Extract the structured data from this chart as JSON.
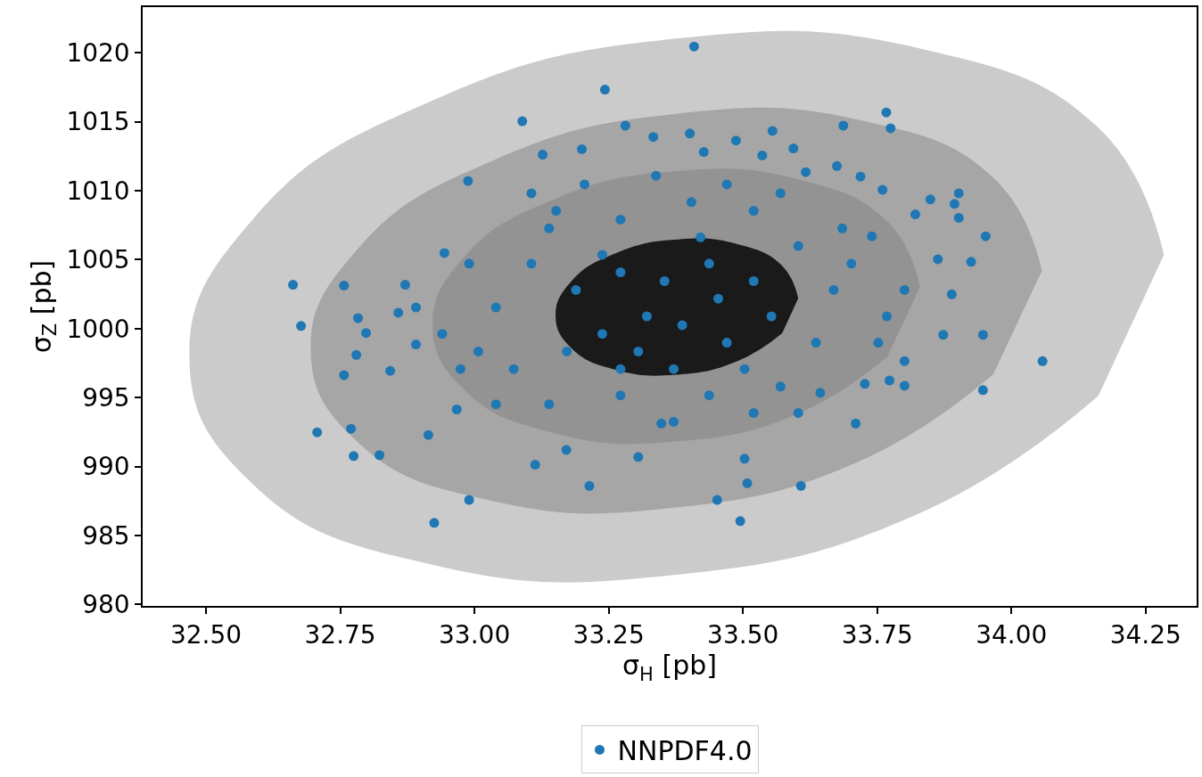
{
  "chart_data": {
    "type": "scatter",
    "xlabel": "σ$_{H}$ [pb]",
    "ylabel": "σ$_{Z}$ [pb]",
    "xlim": [
      32.382,
      34.345
    ],
    "ylim": [
      979.9,
      1023.3
    ],
    "xticks": [
      {
        "value": 32.5,
        "label": "32.50"
      },
      {
        "value": 32.75,
        "label": "32.75"
      },
      {
        "value": 33.0,
        "label": "33.00"
      },
      {
        "value": 33.25,
        "label": "33.25"
      },
      {
        "value": 33.5,
        "label": "33.50"
      },
      {
        "value": 33.75,
        "label": "33.75"
      },
      {
        "value": 34.0,
        "label": "34.00"
      },
      {
        "value": 34.25,
        "label": "34.25"
      }
    ],
    "yticks": [
      980,
      985,
      990,
      995,
      1000,
      1005,
      1010,
      1015,
      1020
    ],
    "grid": false,
    "legend": "bottom",
    "series": [
      {
        "type": "area",
        "color": "#cbcbcb",
        "x": [
          34.284,
          34.162,
          33.83,
          33.376,
          32.922,
          32.59,
          32.469,
          32.59,
          32.922,
          33.376,
          33.83,
          34.162
        ],
        "values": [
          1005.35,
          1014.56,
          1020.3,
          1021.02,
          1016.54,
          1008.05,
          997.83,
          988.62,
          982.88,
          982.16,
          986.64,
          995.13
        ]
      },
      {
        "type": "area",
        "color": "#a6a6a6",
        "x": [
          34.057,
          33.966,
          33.717,
          33.376,
          33.036,
          32.786,
          32.695,
          32.786,
          33.036,
          33.376,
          33.717,
          33.966
        ],
        "values": [
          1004.2,
          1010.95,
          1015.11,
          1015.57,
          1012.21,
          1005.92,
          998.4,
          991.65,
          987.49,
          987.03,
          990.39,
          996.68
        ]
      },
      {
        "type": "area",
        "color": "#939393",
        "x": [
          33.83,
          33.769,
          33.603,
          33.376,
          33.149,
          32.983,
          32.922,
          32.983,
          33.149,
          33.376,
          33.603,
          33.769
        ],
        "values": [
          1003.05,
          1007.76,
          1010.82,
          1011.42,
          1009.39,
          1005.28,
          1000.19,
          995.48,
          992.42,
          991.82,
          993.85,
          997.96
        ]
      },
      {
        "type": "area",
        "color": "#1a1a1a",
        "x": [
          33.603,
          33.573,
          33.49,
          33.377,
          33.264,
          33.181,
          33.151,
          33.181,
          33.264,
          33.377,
          33.49,
          33.573
        ],
        "values": [
          1002.2,
          1004.56,
          1006.12,
          1006.46,
          1005.48,
          1003.46,
          1000.92,
          998.56,
          997.0,
          996.66,
          997.64,
          999.66
        ]
      },
      {
        "name": "NNPDF4.0",
        "marker": "circle",
        "color": "#1f77b4",
        "x": [
          32.662,
          32.677,
          32.707,
          32.757,
          32.757,
          32.77,
          32.775,
          32.78,
          32.783,
          32.798,
          32.823,
          32.843,
          32.871,
          32.858,
          32.891,
          32.891,
          32.914,
          32.925,
          32.944,
          32.967,
          32.99,
          32.988,
          33.089,
          33.113,
          33.127,
          33.152,
          33.171,
          33.214,
          33.2,
          33.243,
          33.281,
          33.305,
          33.333,
          33.348,
          33.401,
          33.409,
          33.427,
          33.452,
          33.487,
          33.495,
          33.503,
          33.508,
          33.536,
          33.555,
          33.594,
          33.608,
          33.617,
          33.644,
          33.675,
          33.687,
          33.719,
          33.71,
          33.727,
          33.767,
          33.775,
          33.76,
          33.74,
          33.773,
          33.801,
          33.801,
          33.821,
          33.849,
          33.863,
          33.873,
          33.894,
          33.889,
          33.902,
          33.925,
          33.947,
          33.947,
          33.952,
          34.058,
          33.902,
          33.189,
          33.272,
          33.354,
          33.437,
          33.52,
          33.238,
          33.305,
          33.387,
          33.47,
          33.553,
          33.172,
          33.371,
          33.106,
          33.04,
          33.073,
          33.139,
          33.272,
          33.404,
          33.52,
          33.603,
          33.669,
          33.636,
          33.57,
          33.437,
          33.272,
          33.139,
          33.007,
          32.99,
          33.702,
          33.768,
          33.752,
          33.205,
          33.338,
          33.47,
          33.371,
          33.52,
          33.603,
          33.04,
          32.94,
          32.974,
          33.106,
          33.57,
          33.801,
          33.685,
          33.238,
          33.454,
          33.321,
          33.503,
          33.272,
          33.421
        ],
        "values": [
          1003.18,
          1000.19,
          992.48,
          1003.12,
          996.62,
          992.74,
          990.76,
          998.09,
          1000.76,
          999.68,
          990.83,
          996.94,
          1003.18,
          1001.15,
          1001.53,
          998.85,
          992.29,
          985.92,
          1005.48,
          994.14,
          987.58,
          1010.7,
          1015.03,
          990.13,
          1012.61,
          1008.54,
          991.21,
          988.6,
          1013.0,
          1017.32,
          1014.71,
          990.7,
          1013.89,
          993.12,
          1014.14,
          1020.45,
          1012.8,
          987.58,
          1013.63,
          986.05,
          990.57,
          988.79,
          1012.55,
          1014.33,
          1013.06,
          988.6,
          1011.34,
          995.35,
          1011.78,
          1014.71,
          1011.02,
          993.12,
          995.99,
          1015.67,
          1014.52,
          1010.06,
          1006.69,
          996.24,
          997.64,
          995.86,
          1008.28,
          1009.36,
          1005.03,
          999.55,
          1009.04,
          1002.48,
          1008.03,
          1004.84,
          995.54,
          999.55,
          1006.69,
          997.64,
          1009.81,
          1002.8,
          1004.08,
          1003.44,
          1004.71,
          1003.44,
          999.62,
          998.34,
          1000.25,
          998.98,
          1000.89,
          998.34,
          997.07,
          1004.71,
          1001.53,
          997.07,
          1007.26,
          1007.9,
          1009.17,
          1008.54,
          1005.99,
          1002.8,
          998.98,
          995.8,
          995.16,
          995.16,
          994.52,
          998.34,
          1004.71,
          1004.71,
          1000.89,
          998.98,
          1010.45,
          1011.08,
          1010.45,
          993.25,
          993.89,
          993.89,
          994.52,
          999.62,
          997.07,
          1009.81,
          1009.81,
          1002.8,
          1007.26,
          1005.35,
          1002.17,
          1000.89,
          997.07,
          997.07,
          1006.62
        ]
      }
    ]
  }
}
